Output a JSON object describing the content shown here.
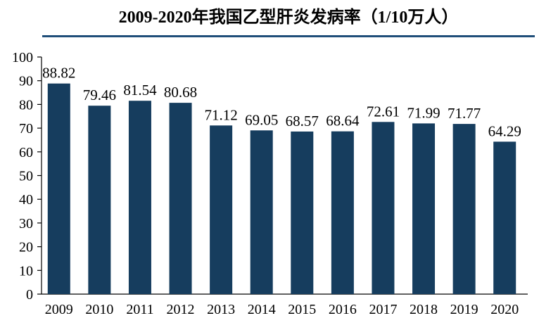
{
  "chart_data": {
    "type": "bar",
    "title": "2009-2020年我国乙型肝炎发病率（1/10万人）",
    "categories": [
      "2009",
      "2010",
      "2011",
      "2012",
      "2013",
      "2014",
      "2015",
      "2016",
      "2017",
      "2018",
      "2019",
      "2020"
    ],
    "values": [
      88.82,
      79.46,
      81.54,
      80.68,
      71.12,
      69.05,
      68.57,
      68.64,
      72.61,
      71.99,
      71.77,
      64.29
    ],
    "data_labels": [
      "88.82",
      "79.46",
      "81.54",
      "80.68",
      "71.12",
      "69.05",
      "68.57",
      "68.64",
      "72.61",
      "71.99",
      "71.77",
      "64.29"
    ],
    "xlabel": "",
    "ylabel": "",
    "ylim": [
      0,
      100
    ],
    "yticks": [
      0,
      10,
      20,
      30,
      40,
      50,
      60,
      70,
      80,
      90,
      100
    ],
    "grid": false,
    "colors": {
      "bar": "#163d5e",
      "title_rule": "#1f4e79"
    }
  }
}
